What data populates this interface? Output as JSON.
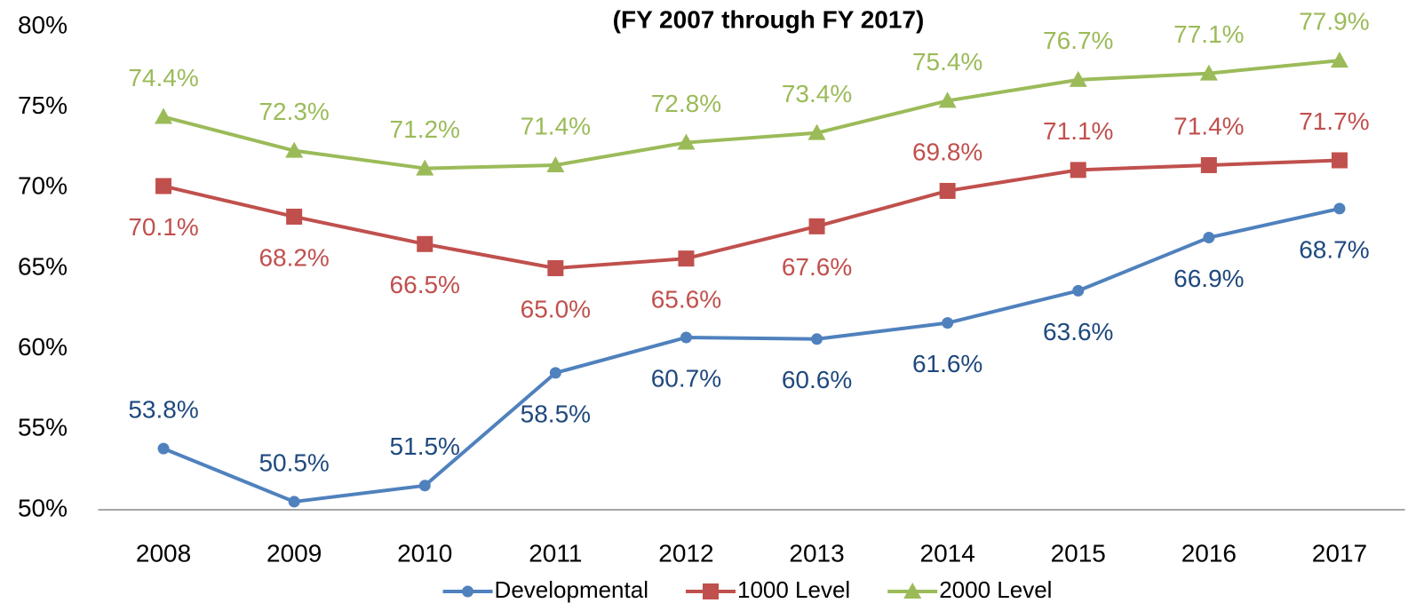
{
  "chart_data": {
    "type": "line",
    "title": "(FY 2007 through FY 2017)",
    "categories": [
      "2008",
      "2009",
      "2010",
      "2011",
      "2012",
      "2013",
      "2014",
      "2015",
      "2016",
      "2017"
    ],
    "series": [
      {
        "name": "Developmental",
        "color": "#4f81bd",
        "label_color": "#1f497d",
        "values": [
          53.8,
          50.5,
          51.5,
          58.5,
          60.7,
          60.6,
          61.6,
          63.6,
          66.9,
          68.7
        ],
        "value_labels": [
          "53.8%",
          "50.5%",
          "51.5%",
          "58.5%",
          "60.7%",
          "60.6%",
          "61.6%",
          "63.6%",
          "66.9%",
          "68.7%"
        ]
      },
      {
        "name": "1000 Level",
        "color": "#c0504d",
        "label_color": "#c0504d",
        "values": [
          70.1,
          68.2,
          66.5,
          65.0,
          65.6,
          67.6,
          69.8,
          71.1,
          71.4,
          71.7
        ],
        "value_labels": [
          "70.1%",
          "68.2%",
          "66.5%",
          "65.0%",
          "65.6%",
          "67.6%",
          "69.8%",
          "71.1%",
          "71.4%",
          "71.7%"
        ]
      },
      {
        "name": "2000 Level",
        "color": "#9bbb59",
        "label_color": "#9bbb59",
        "values": [
          74.4,
          72.3,
          71.2,
          71.4,
          72.8,
          73.4,
          75.4,
          76.7,
          77.1,
          77.9
        ],
        "value_labels": [
          "74.4%",
          "72.3%",
          "71.2%",
          "71.4%",
          "72.8%",
          "73.4%",
          "75.4%",
          "76.7%",
          "77.1%",
          "77.9%"
        ]
      }
    ],
    "ylim": [
      50,
      80
    ],
    "yticks": [
      {
        "value": 50,
        "label": "50%"
      },
      {
        "value": 55,
        "label": "55%"
      },
      {
        "value": 60,
        "label": "60%"
      },
      {
        "value": 65,
        "label": "65%"
      },
      {
        "value": 70,
        "label": "70%"
      },
      {
        "value": 75,
        "label": "75%"
      },
      {
        "value": 80,
        "label": "80%"
      }
    ],
    "grid": false,
    "legend": "bottom"
  }
}
